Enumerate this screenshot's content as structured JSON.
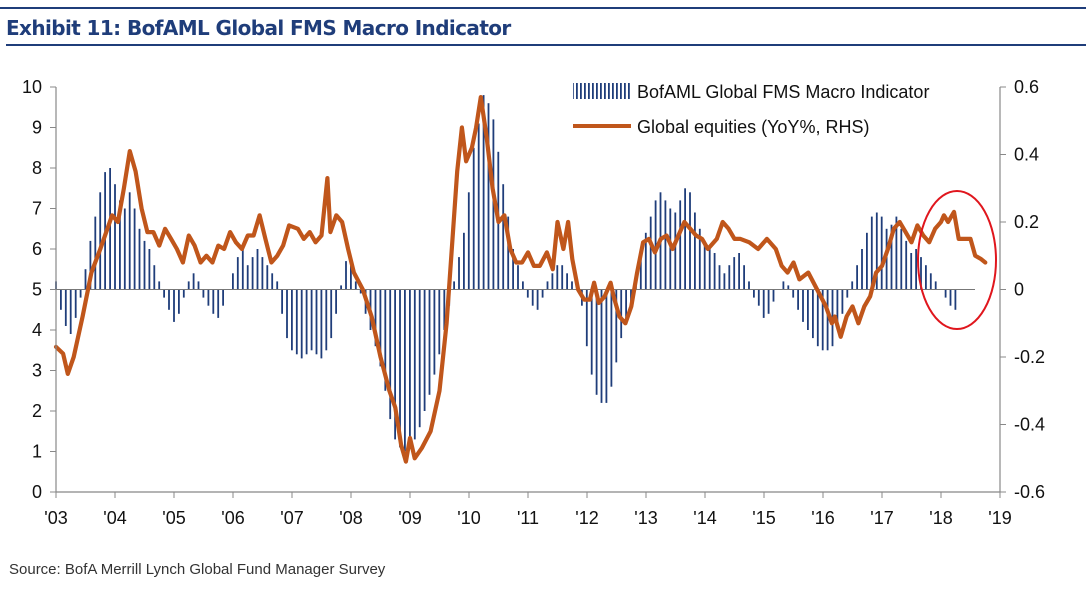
{
  "header": {
    "title": "Exhibit 11: BofAML Global FMS Macro Indicator"
  },
  "source": "Source:  BofA Merrill Lynch Global Fund Manager Survey",
  "colors": {
    "bars": "#1f3d7a",
    "line": "#c0561b",
    "highlight": "#e0161d",
    "axis": "#888888"
  },
  "chart_data": {
    "type": "bar+line",
    "title": "BofAML Global FMS Macro Indicator",
    "x_ticks": [
      "'03",
      "'04",
      "'05",
      "'06",
      "'07",
      "'08",
      "'09",
      "'10",
      "'11",
      "'12",
      "'13",
      "'14",
      "'15",
      "'16",
      "'17",
      "'18",
      "'19"
    ],
    "y_left": {
      "range": [
        0,
        10
      ],
      "ticks": [
        "10",
        "9",
        "8",
        "7",
        "6",
        "5",
        "4",
        "3",
        "2",
        "1",
        "0"
      ],
      "baseline": 5
    },
    "y_right": {
      "range": [
        -0.6,
        0.6
      ],
      "ticks": [
        "0.6",
        "0.4",
        "0.2",
        "0",
        "-0.2",
        "-0.4",
        "-0.6"
      ]
    },
    "legend": [
      {
        "label": "BofAML Global FMS Macro Indicator",
        "kind": "bar"
      },
      {
        "label": "Global equities (YoY%, RHS)",
        "kind": "line"
      }
    ],
    "annotation": "red circle around 2018",
    "bar_series": {
      "name": "BofAML Global FMS Macro Indicator",
      "start_year": 2003.0,
      "step_years": 0.0833,
      "values": [
        5.2,
        4.5,
        4.1,
        3.9,
        4.3,
        4.8,
        5.5,
        6.2,
        6.8,
        7.4,
        7.9,
        8.0,
        7.6,
        7.2,
        7.0,
        7.4,
        7.0,
        6.5,
        6.2,
        6.0,
        5.6,
        5.2,
        4.8,
        4.5,
        4.2,
        4.4,
        4.8,
        5.2,
        5.4,
        5.2,
        4.8,
        4.6,
        4.4,
        4.3,
        4.6,
        5.0,
        5.4,
        5.8,
        6.0,
        5.6,
        5.8,
        6.0,
        5.8,
        5.6,
        5.4,
        5.2,
        4.4,
        3.8,
        3.5,
        3.4,
        3.3,
        3.4,
        3.5,
        3.4,
        3.3,
        3.5,
        3.8,
        4.4,
        5.1,
        5.7,
        5.6,
        5.2,
        4.9,
        4.4,
        4.0,
        3.6,
        3.1,
        2.5,
        1.8,
        1.3,
        1.1,
        1.0,
        1.1,
        1.3,
        1.6,
        2.0,
        2.4,
        2.9,
        3.4,
        4.0,
        4.6,
        5.2,
        5.8,
        6.4,
        7.4,
        8.5,
        9.1,
        9.8,
        9.6,
        9.2,
        8.4,
        7.6,
        6.8,
        6.0,
        5.6,
        5.2,
        4.8,
        4.6,
        4.5,
        4.8,
        5.2,
        5.4,
        5.6,
        5.6,
        5.4,
        5.2,
        5.0,
        4.6,
        3.6,
        2.9,
        2.4,
        2.2,
        2.2,
        2.6,
        3.2,
        3.8,
        4.2,
        4.6,
        5.2,
        6.0,
        6.4,
        6.8,
        7.2,
        7.4,
        7.2,
        7.0,
        6.9,
        7.2,
        7.5,
        7.4,
        6.9,
        6.5,
        6.2,
        6.0,
        5.9,
        5.6,
        5.4,
        5.6,
        5.8,
        5.9,
        5.6,
        5.2,
        4.8,
        4.6,
        4.3,
        4.4,
        4.7,
        5.0,
        5.2,
        5.1,
        4.8,
        4.5,
        4.2,
        4.0,
        3.8,
        3.6,
        3.5,
        3.5,
        3.6,
        4.0,
        4.4,
        4.8,
        5.2,
        5.6,
        6.0,
        6.4,
        6.8,
        6.9,
        6.8,
        6.5,
        6.6,
        6.8,
        6.5,
        6.2,
        5.9,
        6.0,
        5.8,
        5.6,
        5.4,
        5.2,
        5.0,
        4.8,
        4.6,
        4.5
      ]
    },
    "line_series": {
      "name": "Global equities (YoY%, RHS)",
      "points": [
        [
          2003.0,
          -0.17
        ],
        [
          2003.12,
          -0.19
        ],
        [
          2003.2,
          -0.25
        ],
        [
          2003.3,
          -0.2
        ],
        [
          2003.45,
          -0.08
        ],
        [
          2003.6,
          0.05
        ],
        [
          2003.75,
          0.12
        ],
        [
          2003.95,
          0.22
        ],
        [
          2004.05,
          0.2
        ],
        [
          2004.15,
          0.3
        ],
        [
          2004.25,
          0.41
        ],
        [
          2004.35,
          0.35
        ],
        [
          2004.45,
          0.24
        ],
        [
          2004.55,
          0.17
        ],
        [
          2004.65,
          0.17
        ],
        [
          2004.75,
          0.13
        ],
        [
          2004.85,
          0.18
        ],
        [
          2004.95,
          0.15
        ],
        [
          2005.05,
          0.12
        ],
        [
          2005.15,
          0.08
        ],
        [
          2005.25,
          0.16
        ],
        [
          2005.35,
          0.13
        ],
        [
          2005.45,
          0.08
        ],
        [
          2005.55,
          0.1
        ],
        [
          2005.65,
          0.08
        ],
        [
          2005.75,
          0.13
        ],
        [
          2005.85,
          0.12
        ],
        [
          2005.95,
          0.17
        ],
        [
          2006.05,
          0.14
        ],
        [
          2006.15,
          0.12
        ],
        [
          2006.25,
          0.16
        ],
        [
          2006.35,
          0.16
        ],
        [
          2006.45,
          0.22
        ],
        [
          2006.55,
          0.15
        ],
        [
          2006.65,
          0.08
        ],
        [
          2006.75,
          0.1
        ],
        [
          2006.85,
          0.13
        ],
        [
          2006.95,
          0.19
        ],
        [
          2007.1,
          0.18
        ],
        [
          2007.2,
          0.15
        ],
        [
          2007.3,
          0.17
        ],
        [
          2007.4,
          0.14
        ],
        [
          2007.5,
          0.16
        ],
        [
          2007.6,
          0.33
        ],
        [
          2007.65,
          0.17
        ],
        [
          2007.75,
          0.22
        ],
        [
          2007.85,
          0.2
        ],
        [
          2007.95,
          0.12
        ],
        [
          2008.05,
          0.05
        ],
        [
          2008.2,
          0.0
        ],
        [
          2008.35,
          -0.08
        ],
        [
          2008.5,
          -0.2
        ],
        [
          2008.65,
          -0.3
        ],
        [
          2008.75,
          -0.35
        ],
        [
          2008.85,
          -0.46
        ],
        [
          2008.93,
          -0.51
        ],
        [
          2009.0,
          -0.44
        ],
        [
          2009.08,
          -0.5
        ],
        [
          2009.2,
          -0.47
        ],
        [
          2009.35,
          -0.42
        ],
        [
          2009.5,
          -0.3
        ],
        [
          2009.62,
          -0.1
        ],
        [
          2009.72,
          0.15
        ],
        [
          2009.8,
          0.35
        ],
        [
          2009.88,
          0.48
        ],
        [
          2009.95,
          0.38
        ],
        [
          2010.05,
          0.42
        ],
        [
          2010.12,
          0.48
        ],
        [
          2010.2,
          0.57
        ],
        [
          2010.3,
          0.45
        ],
        [
          2010.4,
          0.3
        ],
        [
          2010.5,
          0.2
        ],
        [
          2010.6,
          0.22
        ],
        [
          2010.7,
          0.12
        ],
        [
          2010.8,
          0.08
        ],
        [
          2010.9,
          0.08
        ],
        [
          2011.0,
          0.11
        ],
        [
          2011.1,
          0.07
        ],
        [
          2011.2,
          0.07
        ],
        [
          2011.32,
          0.11
        ],
        [
          2011.42,
          0.06
        ],
        [
          2011.5,
          0.2
        ],
        [
          2011.6,
          0.12
        ],
        [
          2011.68,
          0.2
        ],
        [
          2011.75,
          0.09
        ],
        [
          2011.85,
          0.0
        ],
        [
          2011.95,
          -0.03
        ],
        [
          2012.05,
          -0.03
        ],
        [
          2012.12,
          0.02
        ],
        [
          2012.2,
          -0.04
        ],
        [
          2012.3,
          -0.02
        ],
        [
          2012.4,
          0.02
        ],
        [
          2012.45,
          -0.02
        ],
        [
          2012.55,
          -0.08
        ],
        [
          2012.65,
          -0.1
        ],
        [
          2012.75,
          -0.05
        ],
        [
          2012.85,
          0.05
        ],
        [
          2012.95,
          0.14
        ],
        [
          2013.05,
          0.15
        ],
        [
          2013.15,
          0.11
        ],
        [
          2013.25,
          0.15
        ],
        [
          2013.35,
          0.16
        ],
        [
          2013.45,
          0.12
        ],
        [
          2013.55,
          0.16
        ],
        [
          2013.65,
          0.2
        ],
        [
          2013.75,
          0.18
        ],
        [
          2013.85,
          0.16
        ],
        [
          2013.95,
          0.15
        ],
        [
          2014.05,
          0.12
        ],
        [
          2014.2,
          0.15
        ],
        [
          2014.3,
          0.2
        ],
        [
          2014.4,
          0.18
        ],
        [
          2014.5,
          0.15
        ],
        [
          2014.6,
          0.15
        ],
        [
          2014.75,
          0.14
        ],
        [
          2014.9,
          0.12
        ],
        [
          2015.05,
          0.15
        ],
        [
          2015.2,
          0.12
        ],
        [
          2015.3,
          0.07
        ],
        [
          2015.4,
          0.05
        ],
        [
          2015.5,
          0.08
        ],
        [
          2015.6,
          0.03
        ],
        [
          2015.75,
          0.05
        ],
        [
          2015.9,
          0.0
        ],
        [
          2016.05,
          -0.05
        ],
        [
          2016.15,
          -0.1
        ],
        [
          2016.2,
          -0.08
        ],
        [
          2016.3,
          -0.14
        ],
        [
          2016.4,
          -0.08
        ],
        [
          2016.5,
          -0.05
        ],
        [
          2016.6,
          -0.1
        ],
        [
          2016.7,
          -0.05
        ],
        [
          2016.8,
          -0.02
        ],
        [
          2016.9,
          0.05
        ],
        [
          2017.0,
          0.07
        ],
        [
          2017.1,
          0.12
        ],
        [
          2017.2,
          0.18
        ],
        [
          2017.3,
          0.2
        ],
        [
          2017.4,
          0.17
        ],
        [
          2017.5,
          0.14
        ],
        [
          2017.6,
          0.19
        ],
        [
          2017.7,
          0.16
        ],
        [
          2017.8,
          0.14
        ],
        [
          2017.9,
          0.18
        ],
        [
          2018.0,
          0.2
        ],
        [
          2018.05,
          0.22
        ],
        [
          2018.12,
          0.2
        ],
        [
          2018.22,
          0.23
        ],
        [
          2018.3,
          0.15
        ],
        [
          2018.4,
          0.15
        ],
        [
          2018.5,
          0.15
        ],
        [
          2018.58,
          0.1
        ],
        [
          2018.68,
          0.09
        ],
        [
          2018.75,
          0.08
        ]
      ]
    }
  }
}
